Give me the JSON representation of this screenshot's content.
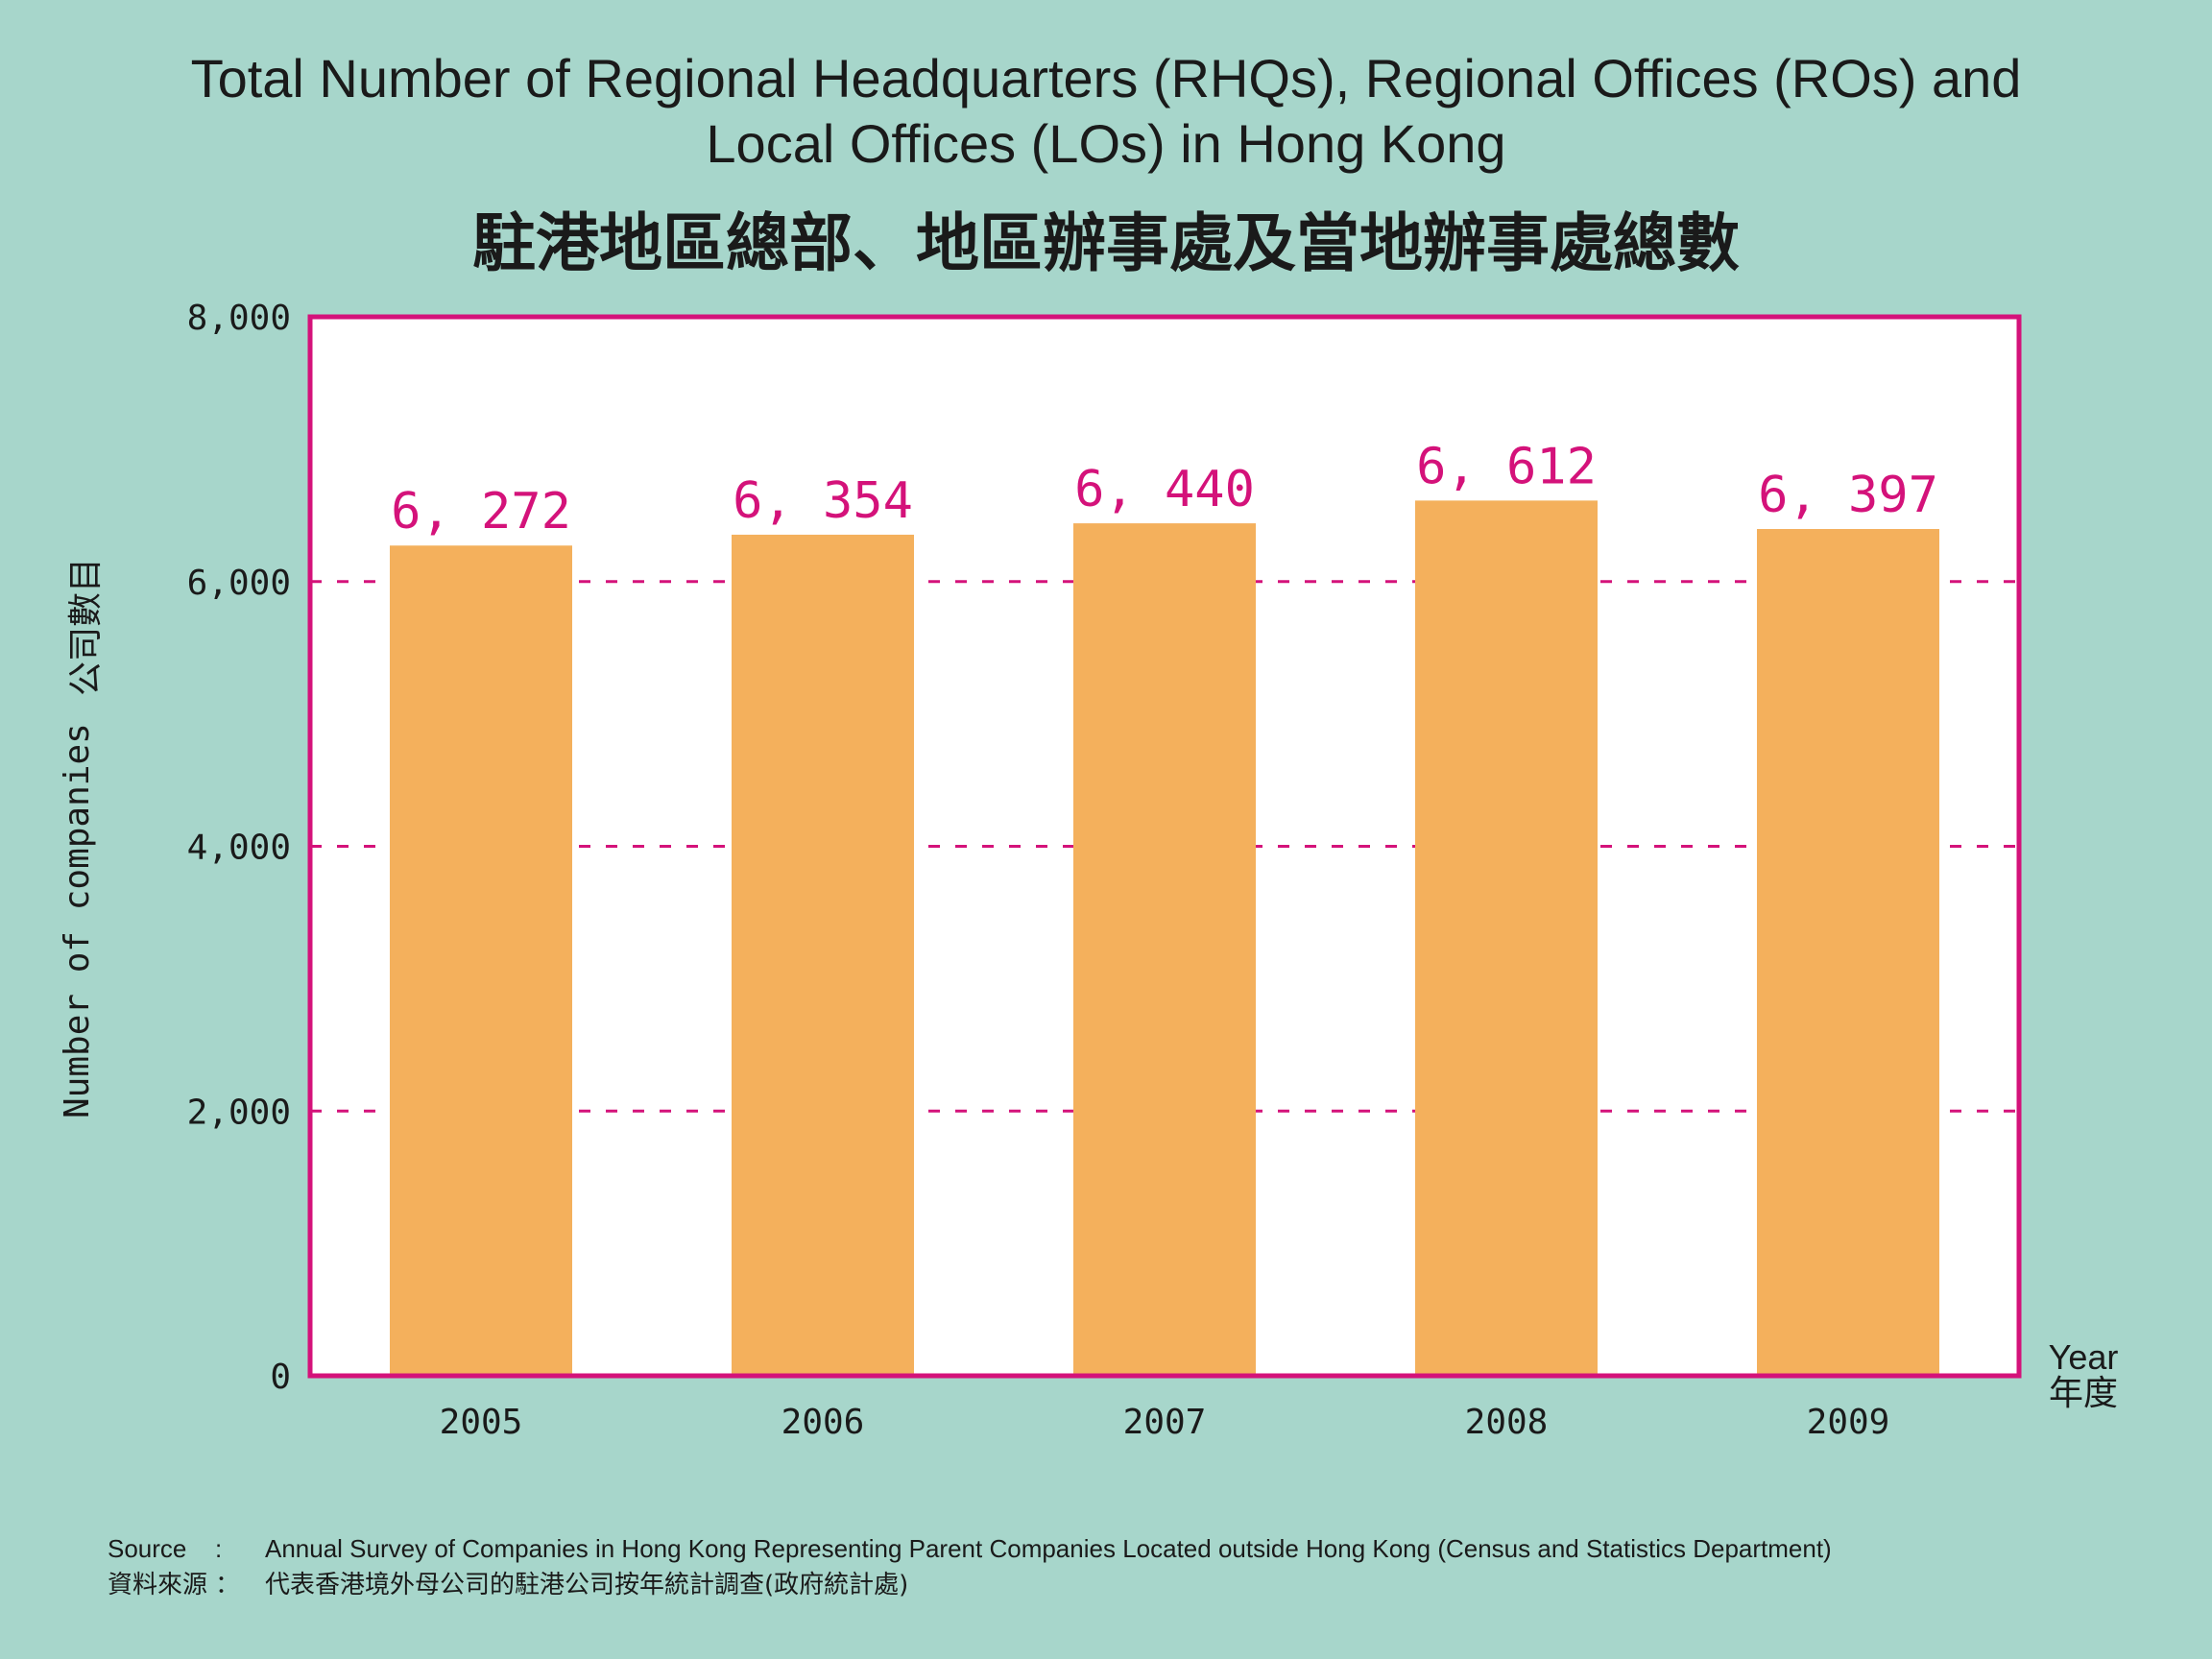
{
  "title": {
    "en_line1": "Total Number of Regional Headquarters (RHQs), Regional Offices (ROs) and",
    "en_line2": "Local Offices (LOs) in Hong Kong",
    "zh": "駐港地區總部、地區辦事處及當地辦事處總數"
  },
  "axis": {
    "y_en": "Number of companies",
    "y_zh": "公司數目",
    "x_en": "Year",
    "x_zh": "年度"
  },
  "source": {
    "label_en": "Source",
    "colon": ":",
    "text_en": "Annual Survey of Companies in Hong Kong Representing Parent Companies Located outside Hong Kong (Census and Statistics Department)",
    "label_zh": "資料來源",
    "colon_zh": "：",
    "text_zh": "代表香港境外母公司的駐港公司按年統計調查(政府統計處)"
  },
  "colors": {
    "background": "#a7d6cb",
    "bar": "#f4b05c",
    "frame": "#d4127a",
    "label": "#d4127a"
  },
  "chart_data": {
    "type": "bar",
    "categories": [
      "2005",
      "2006",
      "2007",
      "2008",
      "2009"
    ],
    "values": [
      6272,
      6354,
      6440,
      6612,
      6397
    ],
    "value_labels": [
      "6, 272",
      "6, 354",
      "6, 440",
      "6, 612",
      "6, 397"
    ],
    "ylim": [
      0,
      8000
    ],
    "yticks": [
      0,
      2000,
      4000,
      6000,
      8000
    ],
    "ytick_labels": [
      "0",
      "2,000",
      "4,000",
      "6,000",
      "8,000"
    ],
    "grid": "dashed horizontal",
    "xlabel": "Year",
    "ylabel": "Number of companies"
  }
}
